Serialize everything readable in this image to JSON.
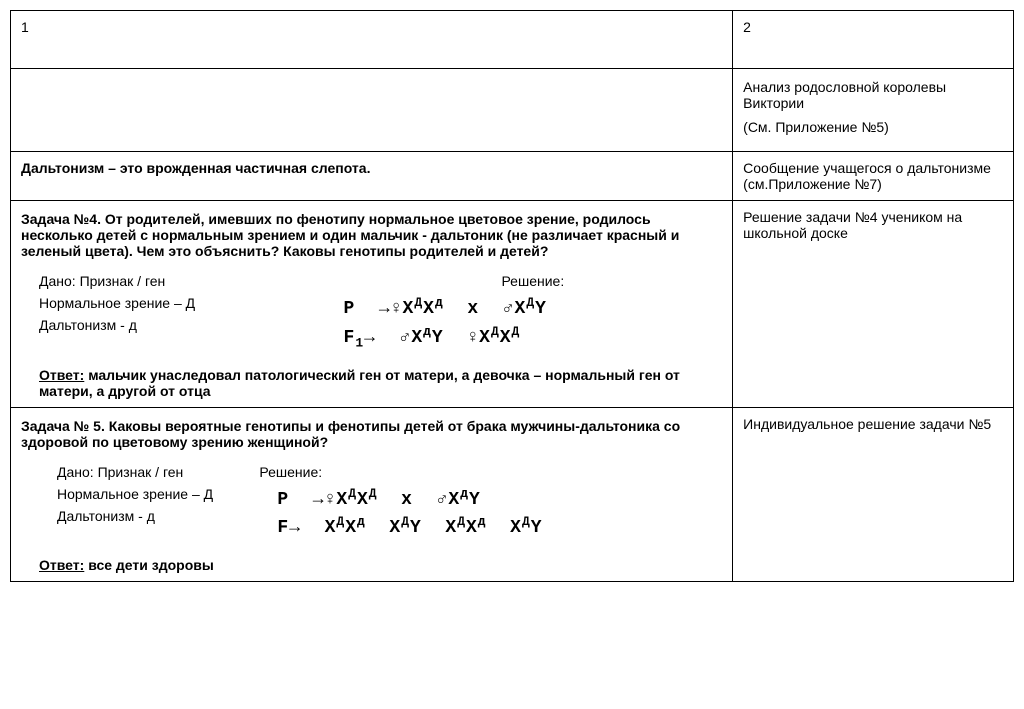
{
  "layout": {
    "col1_pct": 72,
    "col2_pct": 28,
    "border_color": "#000000",
    "background": "#ffffff",
    "font_family": "Arial"
  },
  "header": {
    "col1": "1",
    "col2": "2"
  },
  "row_intro": {
    "left": "",
    "right_line1": "Анализ родословной королевы Виктории",
    "right_line2": "(См. Приложение №5)"
  },
  "row_defn": {
    "left": "Дальтонизм – это врожденная частичная слепота.",
    "right": "Сообщение учащегося о дальтонизме (см.Приложение №7)"
  },
  "task4": {
    "problem": "Задача №4. От родителей, имевших по фенотипу нормальное цветовое зрение, родилось несколько детей с нормальным зрением и один мальчик - дальтоник (не различает красный и зеленый цвета). Чем это объяснить? Каковы генотипы родителей и детей?",
    "solution_label": "Решение:",
    "given_title": "Дано: Признак / ген",
    "given_line1": "Нормальное зрение – Д",
    "given_line2": "Дальтонизм - д",
    "answer_label": "Ответ:",
    "answer_text": "мальчик унаследовал патологический ген от матери, а девочка – нормальный ген от матери, а другой от отца",
    "right": "Решение задачи №4 учеником на школьной доске",
    "formula": {
      "P_html": "P &nbsp;→♀X<sup>Д</sup>X<sup>д</sup>&nbsp; x &nbsp;♂X<sup>Д</sup>Y",
      "F_html": "F<sub>1</sub>→&nbsp; ♂X<sup>д</sup>Y&nbsp; ♀X<sup>Д</sup>X<sup>Д</sup>"
    }
  },
  "task5": {
    "problem": "Задача № 5. Каковы вероятные генотипы и фенотипы детей от брака мужчины-дальтоника со здоровой по цветовому зрению женщиной?",
    "solution_label": "Решение:",
    "given_title": "Дано: Признак / ген",
    "given_line1": "Нормальное зрение – Д",
    "given_line2": "Дальтонизм - д",
    "answer_label": "Ответ:",
    "answer_text": "все дети здоровы",
    "right": "Индивидуальное решение задачи №5",
    "formula": {
      "P_html": "P &nbsp;→♀X<sup>Д</sup>X<sup>Д</sup>&nbsp; x &nbsp;♂X<sup>д</sup>Y",
      "F_html": "F→&nbsp; X<sup>Д</sup>X<sup>д</sup>&nbsp; X<sup>Д</sup>Y&nbsp; X<sup>Д</sup>X<sup>д</sup>&nbsp; X<sup>Д</sup>Y"
    }
  }
}
